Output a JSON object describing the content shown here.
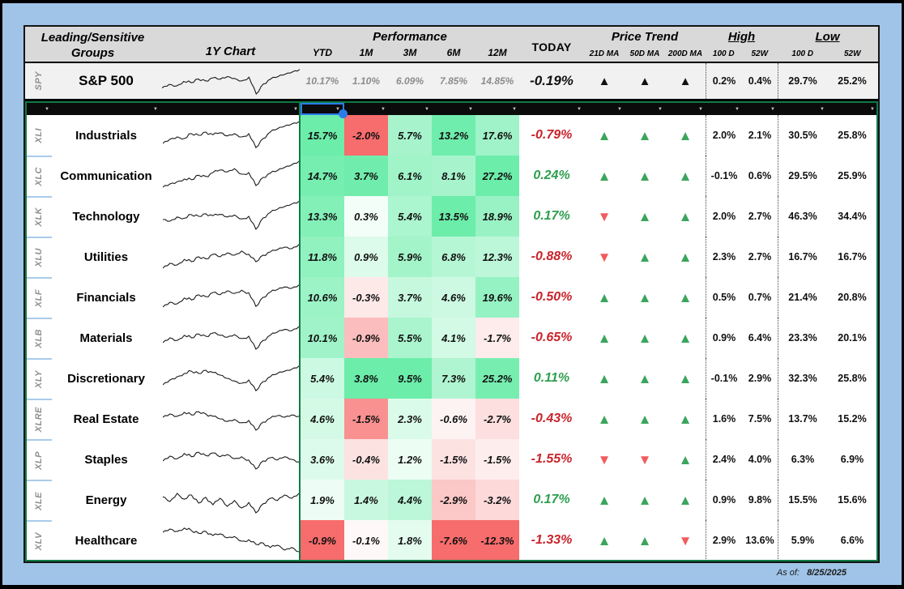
{
  "page": {
    "as_of_label": "As of:",
    "as_of_date": "8/25/2025"
  },
  "colors": {
    "background": "#A0C4E8",
    "header_bg": "#D9D9D9",
    "spy_bg": "#F1F1F1",
    "filter_bar": "#0B0B0B",
    "heat_positive": "#6CEDAA",
    "heat_negative": "#F76C6C",
    "trend_up": "#3BA55C",
    "trend_down": "#F25B5C",
    "spy_trend": "#111111",
    "today_positive": "#2E9E4F",
    "today_negative": "#C9242C",
    "selection": "#2B7CEA",
    "freeze_line": "#0E7B47"
  },
  "header": {
    "group_line1": "Leading/Sensitive",
    "group_line2": "Groups",
    "chart_col": "1Y Chart",
    "performance": "Performance",
    "perf_cols": [
      "YTD",
      "1M",
      "3M",
      "6M",
      "12M"
    ],
    "today": "TODAY",
    "price_trend": "Price Trend",
    "trend_cols": [
      "21D MA",
      "50D MA",
      "200D MA"
    ],
    "high": "High",
    "low": "Low",
    "hl_cols": [
      "100 D",
      "52W"
    ]
  },
  "filter": {
    "selected_col": 3,
    "column_count": 16
  },
  "spy": {
    "ticker": "SPY",
    "name": "S&P 500",
    "perf": [
      "10.17%",
      "1.10%",
      "6.09%",
      "7.85%",
      "14.85%"
    ],
    "today": "-0.19%",
    "trend": [
      "up",
      "up",
      "up"
    ],
    "high": [
      "0.2%",
      "0.4%"
    ],
    "low": [
      "29.7%",
      "25.2%"
    ],
    "spark": [
      0.28,
      0.4,
      0.35,
      0.5,
      0.46,
      0.58,
      0.52,
      0.62,
      0.57,
      0.66,
      0.6,
      0.52,
      0.64,
      0.08,
      0.42,
      0.58,
      0.66,
      0.74,
      0.82,
      0.9
    ]
  },
  "rows": [
    {
      "ticker": "XLI",
      "name": "Industrials",
      "perf": [
        "15.7%",
        "-2.0%",
        "5.7%",
        "13.2%",
        "17.6%"
      ],
      "today": "-0.79%",
      "trend": [
        "up",
        "up",
        "up"
      ],
      "high": [
        "2.0%",
        "2.1%"
      ],
      "low": [
        "30.5%",
        "25.8%"
      ],
      "spark": [
        0.25,
        0.38,
        0.45,
        0.4,
        0.55,
        0.5,
        0.6,
        0.52,
        0.58,
        0.48,
        0.55,
        0.45,
        0.55,
        0.12,
        0.4,
        0.6,
        0.7,
        0.78,
        0.85,
        0.92
      ]
    },
    {
      "ticker": "XLC",
      "name": "Communication",
      "perf": [
        "14.7%",
        "3.7%",
        "6.1%",
        "8.1%",
        "27.2%"
      ],
      "today": "0.24%",
      "trend": [
        "up",
        "up",
        "up"
      ],
      "high": [
        "-0.1%",
        "0.6%"
      ],
      "low": [
        "29.5%",
        "25.9%"
      ],
      "spark": [
        0.15,
        0.25,
        0.32,
        0.4,
        0.38,
        0.52,
        0.48,
        0.6,
        0.68,
        0.62,
        0.72,
        0.55,
        0.6,
        0.2,
        0.45,
        0.58,
        0.66,
        0.76,
        0.84,
        0.95
      ]
    },
    {
      "ticker": "XLK",
      "name": "Technology",
      "perf": [
        "13.3%",
        "0.3%",
        "5.4%",
        "13.5%",
        "18.9%"
      ],
      "today": "0.17%",
      "trend": [
        "down",
        "up",
        "up"
      ],
      "high": [
        "2.0%",
        "2.7%"
      ],
      "low": [
        "46.3%",
        "34.4%"
      ],
      "spark": [
        0.4,
        0.35,
        0.48,
        0.44,
        0.55,
        0.5,
        0.58,
        0.52,
        0.56,
        0.48,
        0.54,
        0.42,
        0.5,
        0.1,
        0.45,
        0.62,
        0.72,
        0.8,
        0.88,
        0.96
      ]
    },
    {
      "ticker": "XLU",
      "name": "Utilities",
      "perf": [
        "11.8%",
        "0.9%",
        "5.9%",
        "6.8%",
        "12.3%"
      ],
      "today": "-0.88%",
      "trend": [
        "down",
        "up",
        "up"
      ],
      "high": [
        "2.3%",
        "2.7%"
      ],
      "low": [
        "16.7%",
        "16.7%"
      ],
      "spark": [
        0.15,
        0.3,
        0.25,
        0.42,
        0.35,
        0.5,
        0.44,
        0.58,
        0.5,
        0.62,
        0.55,
        0.68,
        0.58,
        0.35,
        0.55,
        0.65,
        0.72,
        0.8,
        0.75,
        0.88
      ]
    },
    {
      "ticker": "XLF",
      "name": "Financials",
      "perf": [
        "10.6%",
        "-0.3%",
        "3.7%",
        "4.6%",
        "19.6%"
      ],
      "today": "-0.50%",
      "trend": [
        "up",
        "up",
        "up"
      ],
      "high": [
        "0.5%",
        "0.7%"
      ],
      "low": [
        "21.4%",
        "20.8%"
      ],
      "spark": [
        0.2,
        0.35,
        0.3,
        0.48,
        0.42,
        0.58,
        0.52,
        0.65,
        0.58,
        0.7,
        0.62,
        0.72,
        0.64,
        0.22,
        0.5,
        0.66,
        0.74,
        0.82,
        0.78,
        0.88
      ]
    },
    {
      "ticker": "XLB",
      "name": "Materials",
      "perf": [
        "10.1%",
        "-0.9%",
        "5.5%",
        "4.1%",
        "-1.7%"
      ],
      "today": "-0.65%",
      "trend": [
        "up",
        "up",
        "up"
      ],
      "high": [
        "0.9%",
        "6.4%"
      ],
      "low": [
        "23.3%",
        "20.1%"
      ],
      "spark": [
        0.35,
        0.5,
        0.42,
        0.58,
        0.5,
        0.62,
        0.55,
        0.65,
        0.58,
        0.52,
        0.6,
        0.48,
        0.55,
        0.15,
        0.42,
        0.58,
        0.68,
        0.76,
        0.72,
        0.85
      ]
    },
    {
      "ticker": "XLY",
      "name": "Discretionary",
      "perf": [
        "5.4%",
        "3.8%",
        "9.5%",
        "7.3%",
        "25.2%"
      ],
      "today": "0.11%",
      "trend": [
        "up",
        "up",
        "up"
      ],
      "high": [
        "-0.1%",
        "2.9%"
      ],
      "low": [
        "32.3%",
        "25.8%"
      ],
      "spark": [
        0.3,
        0.45,
        0.55,
        0.65,
        0.72,
        0.65,
        0.75,
        0.68,
        0.6,
        0.5,
        0.42,
        0.35,
        0.45,
        0.12,
        0.4,
        0.55,
        0.65,
        0.72,
        0.78,
        0.88
      ]
    },
    {
      "ticker": "XLRE",
      "name": "Real Estate",
      "perf": [
        "4.6%",
        "-1.5%",
        "2.3%",
        "-0.6%",
        "-2.7%"
      ],
      "today": "-0.43%",
      "trend": [
        "up",
        "up",
        "up"
      ],
      "high": [
        "1.6%",
        "7.5%"
      ],
      "low": [
        "13.7%",
        "15.2%"
      ],
      "spark": [
        0.55,
        0.65,
        0.58,
        0.7,
        0.62,
        0.72,
        0.65,
        0.58,
        0.5,
        0.42,
        0.48,
        0.38,
        0.45,
        0.15,
        0.4,
        0.52,
        0.6,
        0.55,
        0.62,
        0.58
      ]
    },
    {
      "ticker": "XLP",
      "name": "Staples",
      "perf": [
        "3.6%",
        "-0.4%",
        "1.2%",
        "-1.5%",
        "-1.5%"
      ],
      "today": "-1.55%",
      "trend": [
        "down",
        "down",
        "up"
      ],
      "high": [
        "2.4%",
        "4.0%"
      ],
      "low": [
        "6.3%",
        "6.9%"
      ],
      "spark": [
        0.45,
        0.6,
        0.52,
        0.68,
        0.58,
        0.72,
        0.62,
        0.7,
        0.58,
        0.65,
        0.52,
        0.58,
        0.48,
        0.2,
        0.45,
        0.55,
        0.48,
        0.58,
        0.5,
        0.42
      ]
    },
    {
      "ticker": "XLE",
      "name": "Energy",
      "perf": [
        "1.9%",
        "1.4%",
        "4.4%",
        "-2.9%",
        "-3.2%"
      ],
      "today": "0.17%",
      "trend": [
        "up",
        "up",
        "up"
      ],
      "high": [
        "0.9%",
        "9.8%"
      ],
      "low": [
        "15.5%",
        "15.6%"
      ],
      "spark": [
        0.6,
        0.45,
        0.7,
        0.52,
        0.65,
        0.4,
        0.58,
        0.35,
        0.55,
        0.3,
        0.48,
        0.25,
        0.42,
        0.1,
        0.38,
        0.55,
        0.48,
        0.65,
        0.55,
        0.7
      ]
    },
    {
      "ticker": "XLV",
      "name": "Healthcare",
      "perf": [
        "-0.9%",
        "-0.1%",
        "1.8%",
        "-7.6%",
        "-12.3%"
      ],
      "today": "-1.33%",
      "trend": [
        "up",
        "up",
        "down"
      ],
      "high": [
        "2.9%",
        "13.6%"
      ],
      "low": [
        "5.9%",
        "6.6%"
      ],
      "spark": [
        0.75,
        0.85,
        0.78,
        0.88,
        0.8,
        0.72,
        0.78,
        0.65,
        0.7,
        0.58,
        0.62,
        0.48,
        0.52,
        0.38,
        0.42,
        0.28,
        0.35,
        0.2,
        0.28,
        0.15
      ]
    }
  ]
}
